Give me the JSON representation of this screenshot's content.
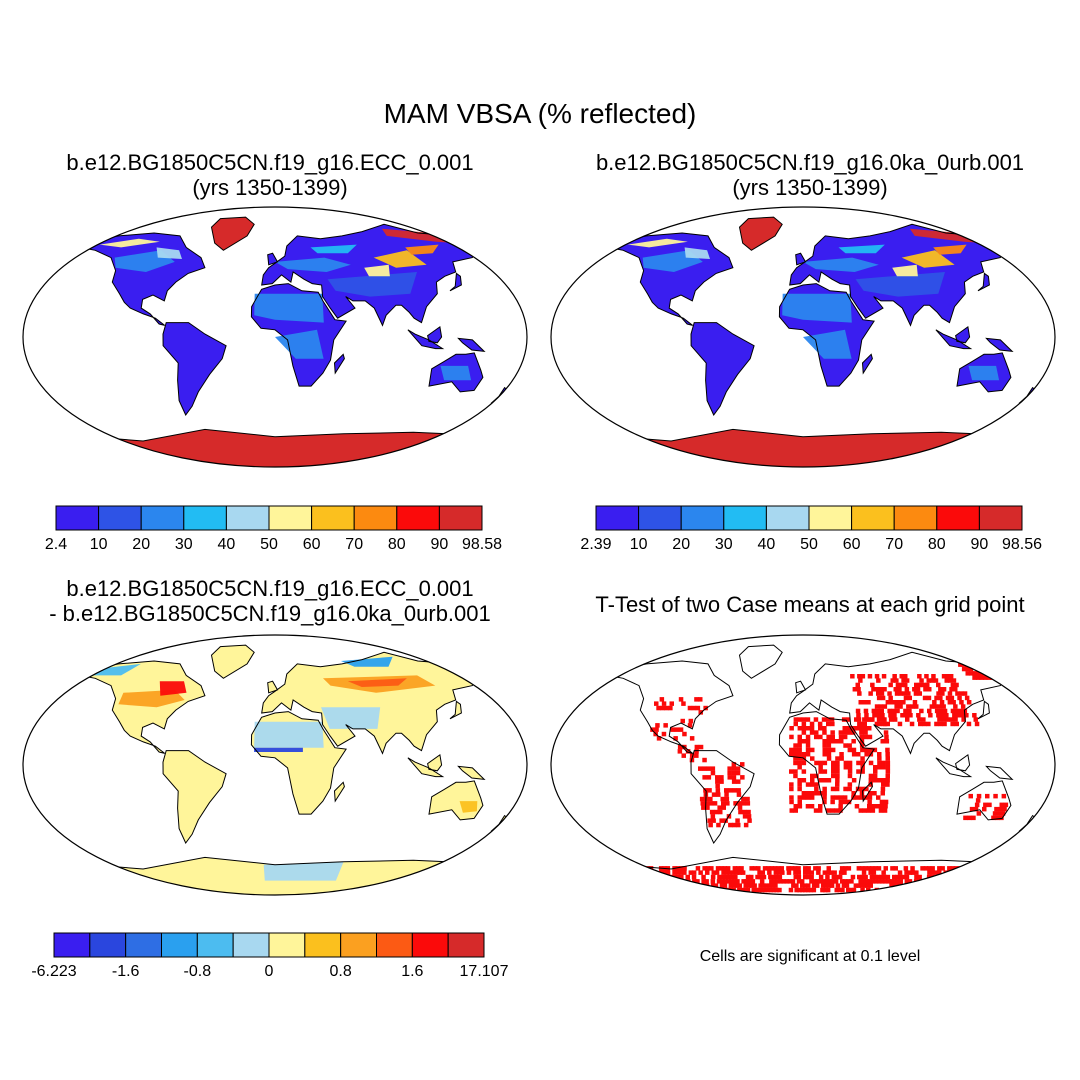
{
  "title": "MAM VBSA (% reflected)",
  "panels": [
    {
      "id": "case1",
      "title_lines": [
        "b.e12.BG1850C5CN.f19_g16.ECC_0.001",
        "(yrs 1350-1399)"
      ],
      "type": "field",
      "colorbar": {
        "colors": [
          "#3a1ef0",
          "#2e53e6",
          "#2b86ee",
          "#22bcf3",
          "#a8d8f0",
          "#fff59a",
          "#fbc01e",
          "#fc8a10",
          "#fb0a0a",
          "#d62a2a"
        ],
        "labels": [
          "2.4",
          "10",
          "20",
          "30",
          "40",
          "50",
          "60",
          "70",
          "80",
          "90",
          "98.58"
        ]
      }
    },
    {
      "id": "case2",
      "title_lines": [
        "b.e12.BG1850C5CN.f19_g16.0ka_0urb.001",
        "(yrs 1350-1399)"
      ],
      "type": "field",
      "colorbar": {
        "colors": [
          "#3a1ef0",
          "#2e53e6",
          "#2b86ee",
          "#22bcf3",
          "#a8d8f0",
          "#fff59a",
          "#fbc01e",
          "#fc8a10",
          "#fb0a0a",
          "#d62a2a"
        ],
        "labels": [
          "2.39",
          "10",
          "20",
          "30",
          "40",
          "50",
          "60",
          "70",
          "80",
          "90",
          "98.56"
        ]
      }
    },
    {
      "id": "diff",
      "title_lines": [
        "b.e12.BG1850C5CN.f19_g16.ECC_0.001",
        "- b.e12.BG1850C5CN.f19_g16.0ka_0urb.001"
      ],
      "type": "difference",
      "colorbar": {
        "colors": [
          "#3a1ef0",
          "#2a46de",
          "#2e6ee4",
          "#2aa0ef",
          "#4cbcf0",
          "#a8d8f0",
          "#fff59a",
          "#fbc01e",
          "#fba020",
          "#fc5a14",
          "#fb0a0a",
          "#d62a2a"
        ],
        "labels": [
          "-6.223",
          "-1.6",
          "-0.8",
          "0",
          "0.8",
          "1.6",
          "17.107"
        ]
      }
    },
    {
      "id": "ttest",
      "title_lines": [
        "T-Test of two Case means at each grid point"
      ],
      "type": "significance",
      "note": "Cells are significant at 0.1 level"
    }
  ]
}
